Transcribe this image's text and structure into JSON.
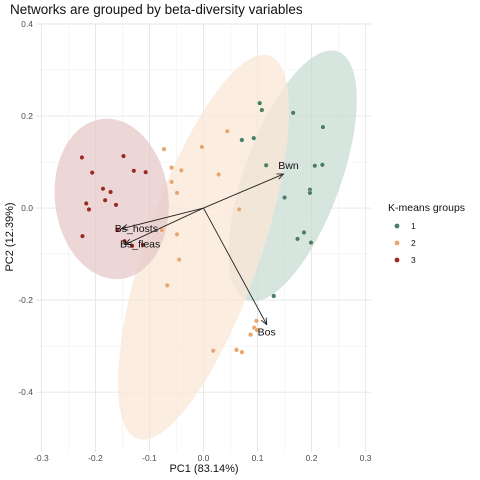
{
  "chart_data": {
    "type": "scatter",
    "title": "Networks are grouped by beta-diversity variables",
    "xlabel": "PC1 (83.14%)",
    "ylabel": "PC2 (12.39%)",
    "xlim": [
      -0.31,
      0.31
    ],
    "ylim": [
      -0.53,
      0.4
    ],
    "x_ticks": [
      -0.3,
      -0.2,
      -0.1,
      0.0,
      0.1,
      0.2,
      0.3
    ],
    "x_tick_labels": [
      "-0.3",
      "-0.2",
      "-0.1",
      "0.0",
      "0.1",
      "0.2",
      "0.3"
    ],
    "y_ticks": [
      -0.4,
      -0.2,
      0.0,
      0.2,
      0.4
    ],
    "y_tick_labels": [
      "-0.4",
      "-0.2",
      "0.0",
      "0.2",
      "0.4"
    ],
    "grid": true,
    "legend": {
      "title": "K-means groups",
      "position": "right",
      "items": [
        {
          "label": "1",
          "color": "#4b7d64"
        },
        {
          "label": "2",
          "color": "#e9a56b"
        },
        {
          "label": "3",
          "color": "#9a2a22"
        }
      ]
    },
    "series": [
      {
        "name": "1",
        "color": "#4b7d64",
        "fill": "#c8dbd2",
        "ellipse": {
          "cx": 0.165,
          "cy": 0.07,
          "rx": 0.245,
          "ry": 0.105,
          "angle_deg": -70
        },
        "points": [
          [
            0.104,
            0.228
          ],
          [
            0.108,
            0.213
          ],
          [
            0.166,
            0.207
          ],
          [
            0.221,
            0.176
          ],
          [
            0.093,
            0.152
          ],
          [
            0.071,
            0.148
          ],
          [
            0.116,
            0.093
          ],
          [
            0.206,
            0.092
          ],
          [
            0.22,
            0.094
          ],
          [
            0.197,
            0.04
          ],
          [
            0.197,
            0.033
          ],
          [
            0.15,
            0.023
          ],
          [
            0.186,
            -0.053
          ],
          [
            0.174,
            -0.067
          ],
          [
            0.199,
            -0.075
          ],
          [
            0.13,
            -0.191
          ]
        ]
      },
      {
        "name": "2",
        "color": "#e9a56b",
        "fill": "#fbe6d5",
        "ellipse": {
          "cx": 0.0,
          "cy": -0.085,
          "rx": 0.375,
          "ry": 0.125,
          "angle_deg": -71
        },
        "points": [
          [
            0.044,
            0.167
          ],
          [
            -0.003,
            0.133
          ],
          [
            -0.073,
            0.128
          ],
          [
            -0.059,
            0.088
          ],
          [
            -0.041,
            0.082
          ],
          [
            -0.059,
            0.057
          ],
          [
            -0.049,
            0.033
          ],
          [
            0.028,
            0.073
          ],
          [
            0.066,
            -0.003
          ],
          [
            -0.077,
            -0.048
          ],
          [
            -0.049,
            -0.057
          ],
          [
            -0.045,
            -0.112
          ],
          [
            -0.067,
            -0.168
          ],
          [
            0.098,
            -0.245
          ],
          [
            0.094,
            -0.26
          ],
          [
            0.099,
            -0.265
          ],
          [
            0.087,
            -0.275
          ],
          [
            0.018,
            -0.31
          ],
          [
            0.061,
            -0.308
          ],
          [
            0.071,
            -0.313
          ]
        ]
      },
      {
        "name": "3",
        "color": "#9a2a22",
        "fill": "#e6c7c6",
        "ellipse": {
          "cx": -0.17,
          "cy": 0.02,
          "rx": 0.105,
          "ry": 0.175,
          "angle_deg": -7
        },
        "points": [
          [
            -0.225,
            0.11
          ],
          [
            -0.148,
            0.113
          ],
          [
            -0.206,
            0.077
          ],
          [
            -0.129,
            0.081
          ],
          [
            -0.107,
            0.078
          ],
          [
            -0.186,
            0.042
          ],
          [
            -0.172,
            0.035
          ],
          [
            -0.182,
            0.017
          ],
          [
            -0.217,
            0.01
          ],
          [
            -0.212,
            -0.003
          ],
          [
            -0.162,
            0.007
          ],
          [
            -0.224,
            -0.061
          ],
          [
            -0.159,
            -0.047
          ],
          [
            -0.132,
            -0.082
          ],
          [
            -0.112,
            -0.08
          ],
          [
            -0.146,
            -0.072
          ]
        ]
      }
    ],
    "vectors": [
      {
        "label": "Bwn",
        "x": 0.148,
        "y": 0.074
      },
      {
        "label": "Bos",
        "x": 0.117,
        "y": -0.253
      },
      {
        "label": "Bs_hosts",
        "x": -0.152,
        "y": -0.045
      },
      {
        "label": "Bs_fleas",
        "x": -0.145,
        "y": -0.079
      }
    ]
  }
}
